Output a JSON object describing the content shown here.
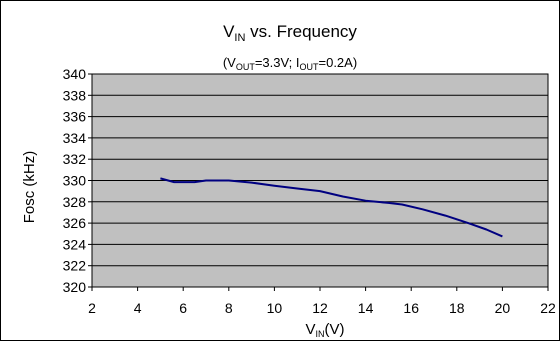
{
  "chart_data": {
    "type": "line",
    "title": {
      "main": "V",
      "sub": "IN",
      "rest": " vs. Frequency"
    },
    "subtitle": {
      "p1": "(V",
      "s1": "OUT",
      "p2": "=3.3V; I",
      "s2": "OUT",
      "p3": "=0.2A)"
    },
    "ylabel": "Fosc (kHz)",
    "xlabel": {
      "main": "V",
      "sub": "IN",
      "rest": "(V)"
    },
    "xlim": [
      2,
      22
    ],
    "ylim": [
      320,
      340
    ],
    "x_ticks": [
      2,
      4,
      6,
      8,
      10,
      12,
      14,
      16,
      18,
      20,
      22
    ],
    "y_ticks": [
      320,
      322,
      324,
      326,
      328,
      330,
      332,
      334,
      336,
      338,
      340
    ],
    "grid": true,
    "plot_background": "#c0c0c0",
    "series": [
      {
        "color": "#000080",
        "x": [
          5,
          5.6,
          6.5,
          7,
          8,
          9,
          10,
          11,
          12,
          13,
          14,
          15,
          15.6,
          16.5,
          17.5,
          18.5,
          19.3,
          20
        ],
        "y": [
          330.2,
          329.85,
          329.85,
          330.0,
          330.0,
          329.8,
          329.5,
          329.25,
          329.0,
          328.5,
          328.1,
          327.9,
          327.75,
          327.3,
          326.7,
          326.0,
          325.4,
          324.75
        ]
      }
    ]
  }
}
